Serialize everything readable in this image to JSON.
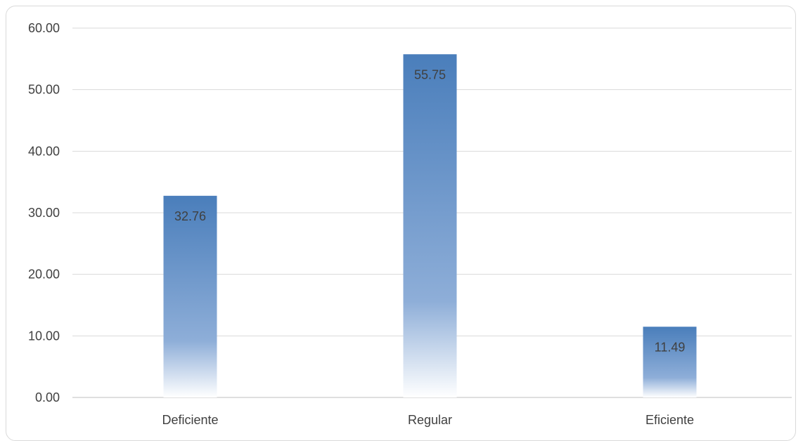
{
  "chart_data": {
    "type": "bar",
    "title": "",
    "xlabel": "",
    "ylabel": "",
    "categories": [
      "Deficiente",
      "Regular",
      "Eficiente"
    ],
    "values": [
      32.76,
      55.75,
      11.49
    ],
    "value_labels": [
      "32.76",
      "55.75",
      "11.49"
    ],
    "ylim": [
      0,
      60
    ],
    "yticks": [
      "0.00",
      "10.00",
      "20.00",
      "30.00",
      "40.00",
      "50.00",
      "60.00"
    ],
    "grid": true,
    "legend": "none",
    "colors": {
      "bar_top": "#4a7ebb",
      "bar_bottom": "#ffffff",
      "grid": "#d9d9d9",
      "text": "#404040"
    }
  }
}
